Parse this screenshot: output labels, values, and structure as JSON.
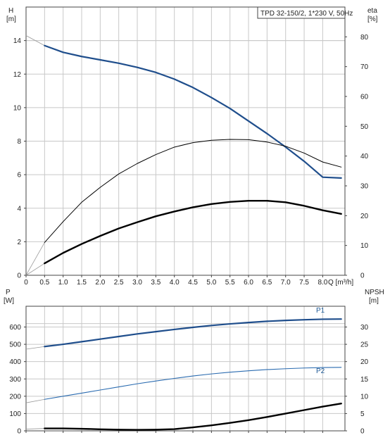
{
  "colors": {
    "blue": "#1f4e8c",
    "blue_light": "#2a6bb0",
    "black": "#000000",
    "grid": "#c8c8c8",
    "extrapolation": "#9a9a9a"
  },
  "legend": "TPD 32-150/2, 1*230 V, 50Hz",
  "chart_data": [
    {
      "type": "line",
      "panel": "top",
      "title": "",
      "xlabel": "Q [m³/h]",
      "ylabel_left": {
        "symbol": "H",
        "unit": "[m]"
      },
      "ylabel_right": {
        "symbol": "eta",
        "unit": "[%]"
      },
      "xlim": [
        0,
        8.6
      ],
      "ylim_left": [
        0,
        16
      ],
      "ylim_right": [
        0,
        90
      ],
      "x_ticks": [
        "0",
        "0.5",
        "1.0",
        "1.5",
        "2.0",
        "2.5",
        "3.0",
        "3.5",
        "4.0",
        "4.5",
        "5.0",
        "5.5",
        "6.0",
        "6.5",
        "7.0",
        "7.5",
        "8.0"
      ],
      "y_ticks_left": [
        "0",
        "2",
        "4",
        "6",
        "8",
        "10",
        "12",
        "14"
      ],
      "y_ticks_right": [
        "0",
        "10",
        "20",
        "30",
        "40",
        "50",
        "60",
        "70",
        "80"
      ],
      "grid": true,
      "series": [
        {
          "key": "H",
          "axis": "left",
          "color": "#1f4e8c",
          "width": 2.2,
          "x": [
            0.5,
            1.0,
            1.5,
            2.0,
            2.5,
            3.0,
            3.5,
            4.0,
            4.5,
            5.0,
            5.5,
            6.0,
            6.5,
            7.0,
            7.5,
            8.0,
            8.5
          ],
          "values": [
            13.7,
            13.3,
            13.05,
            12.85,
            12.65,
            12.4,
            12.1,
            11.7,
            11.2,
            10.6,
            9.95,
            9.2,
            8.45,
            7.65,
            6.8,
            5.85,
            5.8
          ],
          "extrapolation": {
            "x": [
              0,
              0.5
            ],
            "values": [
              14.3,
              13.7
            ]
          }
        },
        {
          "key": "eta_P1",
          "axis": "right",
          "color": "#000000",
          "width": 1.0,
          "x": [
            0.5,
            1.0,
            1.5,
            2.0,
            2.5,
            3.0,
            3.5,
            4.0,
            4.5,
            5.0,
            5.5,
            6.0,
            6.5,
            7.0,
            7.5,
            8.0,
            8.5
          ],
          "values": [
            11.0,
            18.0,
            24.5,
            29.5,
            34.0,
            37.5,
            40.5,
            43.0,
            44.5,
            45.3,
            45.6,
            45.5,
            44.7,
            43.3,
            41.0,
            38.0,
            36.3
          ],
          "extrapolation": {
            "x": [
              0,
              0.5
            ],
            "values": [
              0,
              11.0
            ]
          }
        },
        {
          "key": "eta_total",
          "axis": "right",
          "color": "#000000",
          "width": 2.4,
          "x": [
            0.5,
            1.0,
            1.5,
            2.0,
            2.5,
            3.0,
            3.5,
            4.0,
            4.5,
            5.0,
            5.5,
            6.0,
            6.5,
            7.0,
            7.5,
            8.0,
            8.5
          ],
          "values": [
            4.0,
            7.5,
            10.5,
            13.2,
            15.7,
            17.8,
            19.8,
            21.4,
            22.8,
            23.9,
            24.6,
            25.0,
            25.0,
            24.5,
            23.3,
            21.8,
            20.6
          ],
          "extrapolation": {
            "x": [
              0,
              0.5
            ],
            "values": [
              0,
              4.0
            ]
          }
        }
      ]
    },
    {
      "type": "line",
      "panel": "bottom",
      "title": "",
      "xlabel": "",
      "ylabel_left": {
        "symbol": "P",
        "unit": "[W]"
      },
      "ylabel_right": {
        "symbol": "NPSH",
        "unit": "[m]"
      },
      "xlim": [
        0,
        8.6
      ],
      "ylim_left": [
        0,
        720
      ],
      "ylim_right": [
        0,
        36
      ],
      "y_ticks_left": [
        "0",
        "100",
        "200",
        "300",
        "400",
        "500",
        "600"
      ],
      "y_ticks_right": [
        "0",
        "5",
        "10",
        "15",
        "20",
        "25",
        "30"
      ],
      "grid": true,
      "series": [
        {
          "key": "P1",
          "name": "P1",
          "axis": "left",
          "color": "#1f4e8c",
          "width": 2.2,
          "x": [
            0.5,
            1.0,
            1.5,
            2.0,
            2.5,
            3.0,
            3.5,
            4.0,
            4.5,
            5.0,
            5.5,
            6.0,
            6.5,
            7.0,
            7.5,
            8.0,
            8.5
          ],
          "values": [
            487,
            500,
            515,
            530,
            545,
            560,
            573,
            586,
            598,
            609,
            618,
            626,
            633,
            638,
            642,
            645,
            646
          ],
          "extrapolation": {
            "x": [
              0,
              0.5
            ],
            "values": [
              472,
              487
            ]
          }
        },
        {
          "key": "P2",
          "name": "P2",
          "axis": "left",
          "color": "#2a6bb0",
          "width": 1.1,
          "x": [
            0.5,
            1.0,
            1.5,
            2.0,
            2.5,
            3.0,
            3.5,
            4.0,
            4.5,
            5.0,
            5.5,
            6.0,
            6.5,
            7.0,
            7.5,
            8.0,
            8.5
          ],
          "values": [
            182,
            200,
            218,
            236,
            254,
            272,
            288,
            303,
            317,
            329,
            339,
            347,
            354,
            359,
            363,
            366,
            367
          ],
          "extrapolation": {
            "x": [
              0,
              0.5
            ],
            "values": [
              162,
              182
            ]
          }
        },
        {
          "key": "NPSH",
          "axis": "right",
          "color": "#000000",
          "width": 2.4,
          "x": [
            0.5,
            1.0,
            1.5,
            2.0,
            2.5,
            3.0,
            3.5,
            4.0,
            4.5,
            5.0,
            5.5,
            6.0,
            6.5,
            7.0,
            7.5,
            8.0,
            8.5
          ],
          "values": [
            0.7,
            0.7,
            0.6,
            0.45,
            0.35,
            0.3,
            0.35,
            0.5,
            1.0,
            1.6,
            2.3,
            3.1,
            4.0,
            5.0,
            6.0,
            7.0,
            7.9
          ],
          "extrapolation": {
            "x": [
              0,
              0.5
            ],
            "values": [
              0.5,
              0.7
            ]
          }
        }
      ]
    }
  ]
}
